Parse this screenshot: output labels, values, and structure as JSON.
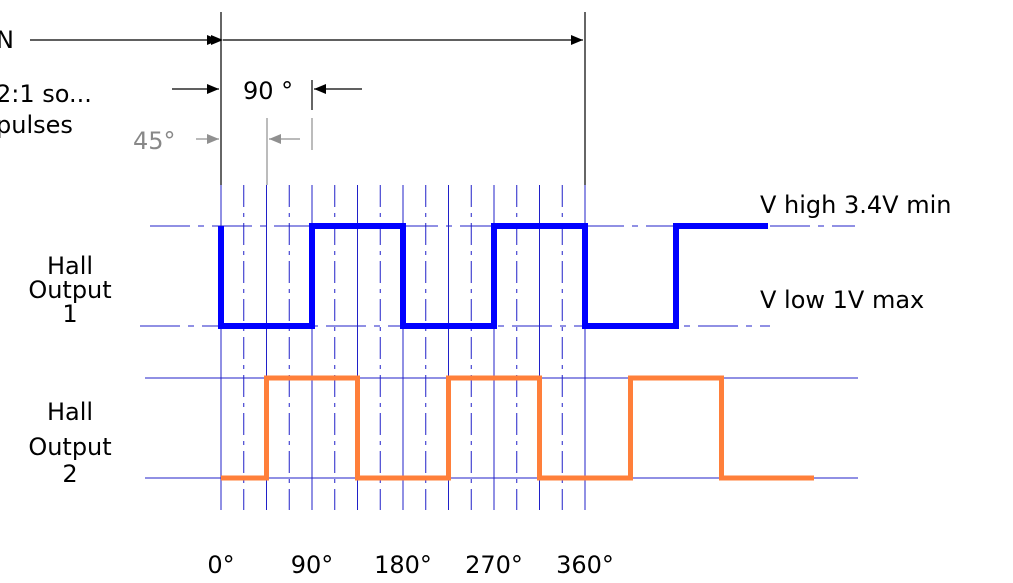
{
  "colors": {
    "output1": "#0000ff",
    "output2": "#ff7f3a",
    "grid": "#2020c8",
    "dimension": "#000000",
    "dimension_grey": "#909090"
  },
  "labels": {
    "top_left_truncated": "N",
    "ratio_line1": "2:1 so...",
    "ratio_line2": "pulses",
    "angle_90": "90 °",
    "angle_45": "45°",
    "v_high": "V high 3.4V min",
    "v_low": "V low 1V max",
    "hall1_line1": "Hall",
    "hall1_line2": "Output",
    "hall1_line3": "1",
    "hall2_line1": "Hall",
    "hall2_line2": "Output",
    "hall2_line3": "2"
  },
  "axis_ticks": [
    "0°",
    "90°",
    "180°",
    "270°",
    "360°"
  ],
  "signals": {
    "output1": {
      "name": "Hall Output 1",
      "transitions_deg": [
        0,
        90,
        180,
        270,
        360,
        450
      ],
      "initial_level": "high"
    },
    "output2": {
      "name": "Hall Output 2",
      "transitions_deg": [
        45,
        135,
        225,
        315,
        405,
        495
      ],
      "initial_level": "low"
    }
  }
}
